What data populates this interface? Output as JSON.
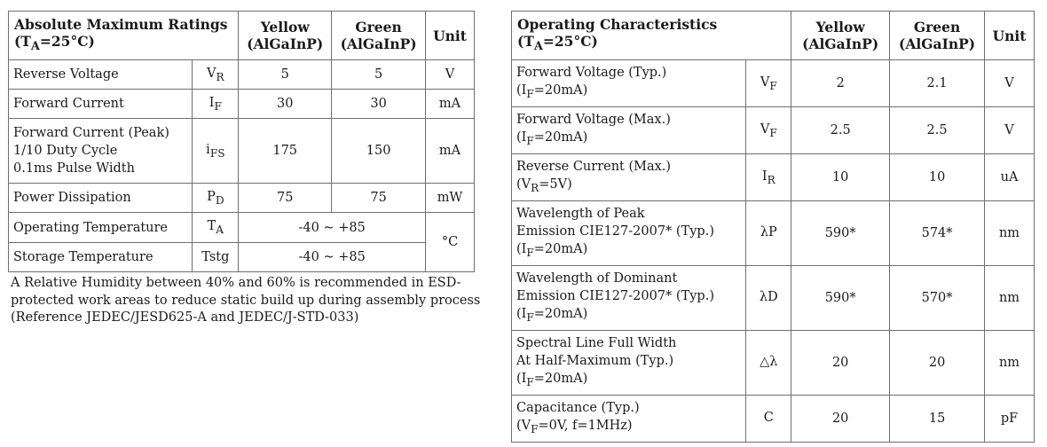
{
  "abs_max": {
    "title": "Absolute Maximum Ratings",
    "cond_main": "(T",
    "cond_sub": "A",
    "cond_rest": "=25°C)",
    "col_yellow": "Yellow",
    "col_green": "Green",
    "col_material": "(AlGaInP)",
    "col_unit": "Unit",
    "rows": [
      {
        "param": [
          "Reverse Voltage"
        ],
        "sym": "V",
        "sym_sub": "R",
        "yellow": "5",
        "green": "5",
        "unit": "V"
      },
      {
        "param": [
          "Forward Current"
        ],
        "sym": "I",
        "sym_sub": "F",
        "yellow": "30",
        "green": "30",
        "unit": "mA"
      },
      {
        "param": [
          "Forward Current (Peak)",
          "1/10 Duty Cycle",
          "0.1ms Pulse Width"
        ],
        "sym": "i",
        "sym_sub": "FS",
        "yellow": "175",
        "green": "150",
        "unit": "mA"
      },
      {
        "param": [
          "Power Dissipation"
        ],
        "sym": "P",
        "sym_sub": "D",
        "yellow": "75",
        "green": "75",
        "unit": "mW"
      }
    ],
    "op_temp": {
      "param": "Operating Temperature",
      "sym": "T",
      "sym_sub": "A",
      "value": "-40 ~ +85"
    },
    "stor_temp": {
      "param": "Storage Temperature",
      "sym": "Tstg",
      "value": "-40 ~ +85"
    },
    "temp_unit": "°C"
  },
  "note": "A Relative Humidity between 40% and 60% is recommended in ESD-protected work areas to reduce static build up during assembly process (Reference JEDEC/JESD625-A and JEDEC/J-STD-033)",
  "op_char": {
    "title": "Operating Characteristics",
    "cond_main": "(T",
    "cond_sub": "A",
    "cond_rest": "=25°C)",
    "col_yellow": "Yellow",
    "col_green": "Green",
    "col_material": "(AlGaInP)",
    "col_unit": "Unit",
    "rows": [
      {
        "lines": [
          "Forward Voltage (Typ.)"
        ],
        "cond": {
          "a": "(I",
          "s": "F",
          "b": "=20mA)"
        },
        "sym": "V",
        "sym_sub": "F",
        "yellow": "2",
        "green": "2.1",
        "unit": "V"
      },
      {
        "lines": [
          "Forward Voltage (Max.)"
        ],
        "cond": {
          "a": "(I",
          "s": "F",
          "b": "=20mA)"
        },
        "sym": "V",
        "sym_sub": "F",
        "yellow": "2.5",
        "green": "2.5",
        "unit": "V"
      },
      {
        "lines": [
          "Reverse Current (Max.)"
        ],
        "cond": {
          "a": "(V",
          "s": "R",
          "b": "=5V)"
        },
        "sym": "I",
        "sym_sub": "R",
        "yellow": "10",
        "green": "10",
        "unit": "uA"
      },
      {
        "lines": [
          "Wavelength of Peak",
          "Emission CIE127-2007* (Typ.)"
        ],
        "cond": {
          "a": "(I",
          "s": "F",
          "b": "=20mA)"
        },
        "sym": "λP",
        "sym_sub": "",
        "yellow": "590*",
        "green": "574*",
        "unit": "nm"
      },
      {
        "lines": [
          "Wavelength of Dominant",
          "Emission CIE127-2007* (Typ.)"
        ],
        "cond": {
          "a": "(I",
          "s": "F",
          "b": "=20mA)"
        },
        "sym": "λD",
        "sym_sub": "",
        "yellow": "590*",
        "green": "570*",
        "unit": "nm"
      },
      {
        "lines": [
          "Spectral Line Full Width",
          "At Half-Maximum (Typ.)"
        ],
        "cond": {
          "a": "(I",
          "s": "F",
          "b": "=20mA)"
        },
        "sym": "△λ",
        "sym_sub": "",
        "yellow": "20",
        "green": "20",
        "unit": "nm"
      },
      {
        "lines": [
          "Capacitance (Typ.)"
        ],
        "cond": {
          "a": "(V",
          "s": "F",
          "b": "=0V, f=1MHz)"
        },
        "sym": "C",
        "sym_sub": "",
        "yellow": "20",
        "green": "15",
        "unit": "pF"
      }
    ]
  }
}
